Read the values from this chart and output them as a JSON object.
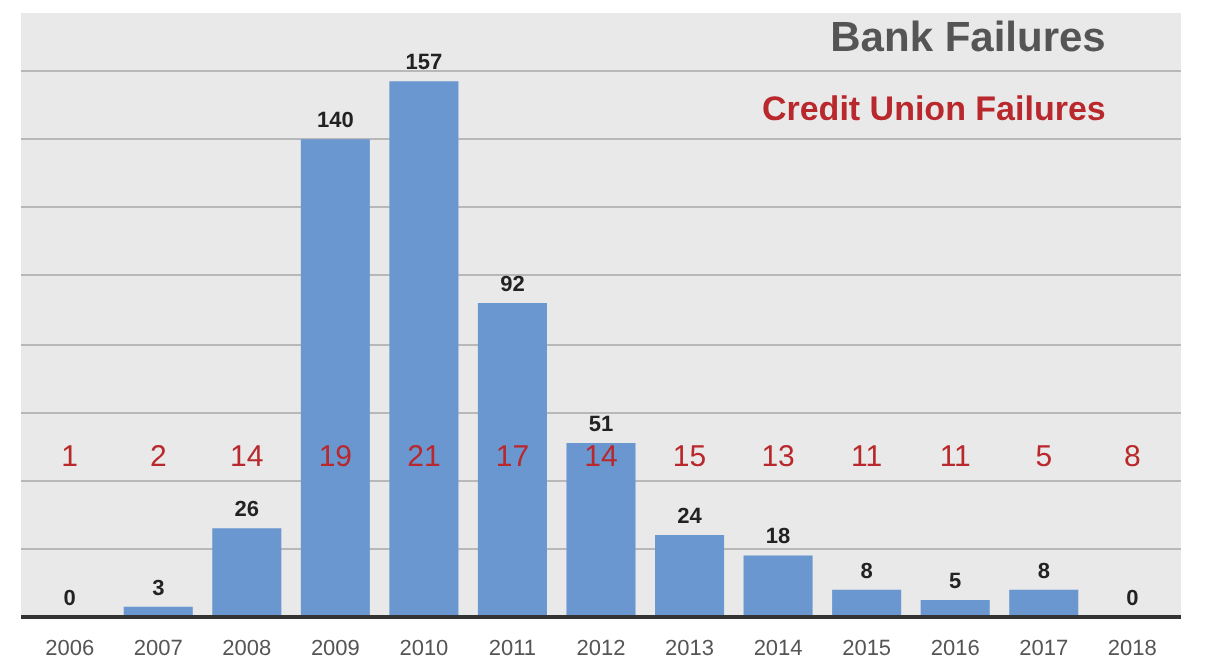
{
  "chart_data": {
    "type": "bar",
    "title": "Bank Failures",
    "subtitle": "Credit Union Failures",
    "categories": [
      "2006",
      "2007",
      "2008",
      "2009",
      "2010",
      "2011",
      "2012",
      "2013",
      "2014",
      "2015",
      "2016",
      "2017",
      "2018"
    ],
    "series": [
      {
        "color": "#6a97d0",
        "values": [
          0,
          3,
          26,
          140,
          157,
          92,
          51,
          24,
          18,
          8,
          5,
          8,
          0
        ]
      }
    ],
    "annotations": [
      "1",
      "2",
      "14",
      "19",
      "21",
      "17",
      "14",
      "15",
      "13",
      "11",
      "11",
      "5",
      "8"
    ],
    "data_labels": true,
    "ylim": [
      0,
      177
    ],
    "yticks": [
      {
        "value": 0,
        "label": null
      },
      {
        "value": 20,
        "label": null
      },
      {
        "value": 40,
        "label": null
      },
      {
        "value": 60,
        "label": null
      },
      {
        "value": 80,
        "label": null
      },
      {
        "value": 100,
        "label": null
      },
      {
        "value": 120,
        "label": null
      },
      {
        "value": 140,
        "label": null
      },
      {
        "value": 160,
        "label": null
      }
    ],
    "grid": "y",
    "tick_labels": "x"
  }
}
